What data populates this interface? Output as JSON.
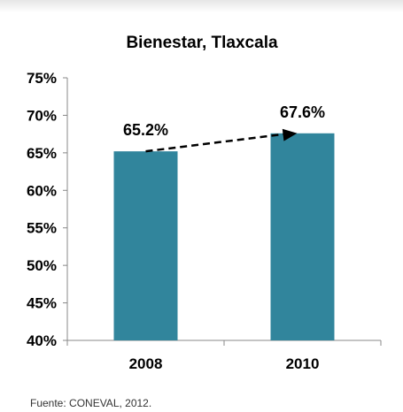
{
  "chart_data": {
    "type": "bar",
    "title": "Bienestar, Tlaxcala",
    "xlabel": "",
    "ylabel": "",
    "categories": [
      "2008",
      "2010"
    ],
    "values": [
      65.2,
      67.6
    ],
    "data_labels": [
      "65.2%",
      "67.6%"
    ],
    "ylim": [
      40,
      75
    ],
    "yticks": [
      40,
      45,
      50,
      55,
      60,
      65,
      70,
      75
    ],
    "ytick_labels": [
      "40%",
      "45%",
      "50%",
      "55%",
      "60%",
      "65%",
      "70%",
      "75%"
    ],
    "bar_color": "#31859c",
    "grid": false,
    "legend": "none",
    "annotations": [
      {
        "type": "dashed-arrow",
        "from": "2008",
        "to": "2010"
      }
    ]
  },
  "source": "Fuente: CONEVAL, 2012."
}
